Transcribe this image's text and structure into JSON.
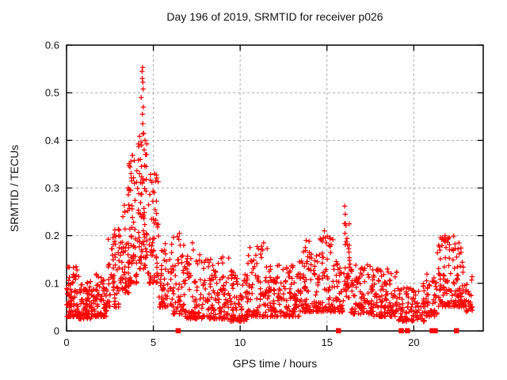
{
  "chart_data": {
    "type": "scatter",
    "title": "Day 196 of 2019, SRMTID for receiver p026",
    "xlabel": "GPS time / hours",
    "ylabel": "SRMTID / TECUs",
    "xlim": [
      0,
      24
    ],
    "ylim": [
      0,
      0.6
    ],
    "xtick_labels": [
      "0",
      "5",
      "10",
      "15",
      "20"
    ],
    "xtick_values": [
      0,
      5,
      10,
      15,
      20
    ],
    "ytick_labels": [
      "0",
      "0.1",
      "0.2",
      "0.3",
      "0.4",
      "0.5",
      "0.6"
    ],
    "ytick_values": [
      0,
      0.1,
      0.2,
      0.3,
      0.4,
      0.5,
      0.6
    ],
    "grid": true,
    "legend": "none",
    "marker": "plus",
    "marker_color": "#ff0000",
    "grid_color": "#a8a8a8",
    "axis_color": "#000000",
    "peak_time_hours": 4.4,
    "max_value_approx": 0.553,
    "series": [
      {
        "name": "SRMTID",
        "clusters": [
          [
            0.0,
            0.7,
            75,
            0.03,
            0.135
          ],
          [
            0.7,
            1.6,
            85,
            0.025,
            0.105
          ],
          [
            1.6,
            2.4,
            75,
            0.03,
            0.12
          ],
          [
            2.4,
            3.0,
            55,
            0.05,
            0.22
          ],
          [
            3.0,
            3.6,
            60,
            0.08,
            0.31
          ],
          [
            3.6,
            4.1,
            60,
            0.1,
            0.37
          ],
          [
            4.1,
            4.65,
            70,
            0.13,
            0.42
          ],
          [
            4.65,
            5.3,
            60,
            0.1,
            0.33
          ],
          [
            5.3,
            6.1,
            60,
            0.05,
            0.19
          ],
          [
            6.1,
            6.8,
            50,
            0.035,
            0.2
          ],
          [
            6.8,
            8.3,
            115,
            0.025,
            0.16
          ],
          [
            8.3,
            9.4,
            85,
            0.025,
            0.155
          ],
          [
            9.4,
            10.4,
            80,
            0.02,
            0.13
          ],
          [
            10.4,
            11.6,
            95,
            0.03,
            0.18
          ],
          [
            11.6,
            13.4,
            140,
            0.03,
            0.14
          ],
          [
            13.4,
            14.4,
            80,
            0.04,
            0.19
          ],
          [
            14.4,
            15.4,
            80,
            0.04,
            0.2
          ],
          [
            15.4,
            15.95,
            40,
            0.04,
            0.15
          ],
          [
            15.95,
            16.35,
            35,
            0.07,
            0.24
          ],
          [
            16.35,
            17.6,
            100,
            0.035,
            0.145
          ],
          [
            17.6,
            19.1,
            115,
            0.03,
            0.135
          ],
          [
            19.1,
            20.7,
            105,
            0.02,
            0.1
          ],
          [
            20.7,
            21.35,
            45,
            0.03,
            0.12
          ],
          [
            21.35,
            22.3,
            80,
            0.05,
            0.2
          ],
          [
            22.3,
            23.0,
            60,
            0.05,
            0.185
          ],
          [
            23.0,
            23.4,
            25,
            0.04,
            0.12
          ]
        ],
        "outlier_points": [
          [
            4.3,
            0.49
          ],
          [
            4.33,
            0.39
          ],
          [
            4.35,
            0.545
          ],
          [
            4.36,
            0.53
          ],
          [
            4.38,
            0.553
          ],
          [
            4.4,
            0.522
          ],
          [
            4.41,
            0.508
          ],
          [
            4.42,
            0.47
          ],
          [
            4.37,
            0.455
          ],
          [
            4.39,
            0.435
          ],
          [
            4.44,
            0.415
          ],
          [
            4.47,
            0.38
          ],
          [
            4.52,
            0.4
          ],
          [
            4.55,
            0.37
          ],
          [
            4.25,
            0.36
          ],
          [
            4.58,
            0.345
          ],
          [
            4.2,
            0.33
          ],
          [
            3.55,
            0.3
          ],
          [
            3.75,
            0.315
          ],
          [
            6.5,
            0.205
          ],
          [
            6.47,
            0.192
          ],
          [
            6.55,
            0.18
          ],
          [
            7.25,
            0.185
          ],
          [
            7.3,
            0.17
          ],
          [
            9.0,
            0.155
          ],
          [
            11.35,
            0.185
          ],
          [
            11.3,
            0.17
          ],
          [
            13.8,
            0.19
          ],
          [
            13.75,
            0.175
          ],
          [
            14.85,
            0.21
          ],
          [
            14.9,
            0.195
          ],
          [
            14.95,
            0.185
          ],
          [
            16.02,
            0.262
          ],
          [
            16.05,
            0.245
          ],
          [
            16.08,
            0.225
          ],
          [
            16.04,
            0.205
          ],
          [
            21.8,
            0.2
          ],
          [
            21.75,
            0.19
          ],
          [
            22.6,
            0.185
          ],
          [
            22.55,
            0.172
          ],
          [
            0.55,
            0.135
          ],
          [
            0.6,
            0.128
          ]
        ],
        "zero_value_hours": [
          6.42,
          15.65,
          19.27,
          19.62,
          21.05,
          21.22,
          22.45
        ]
      }
    ]
  }
}
